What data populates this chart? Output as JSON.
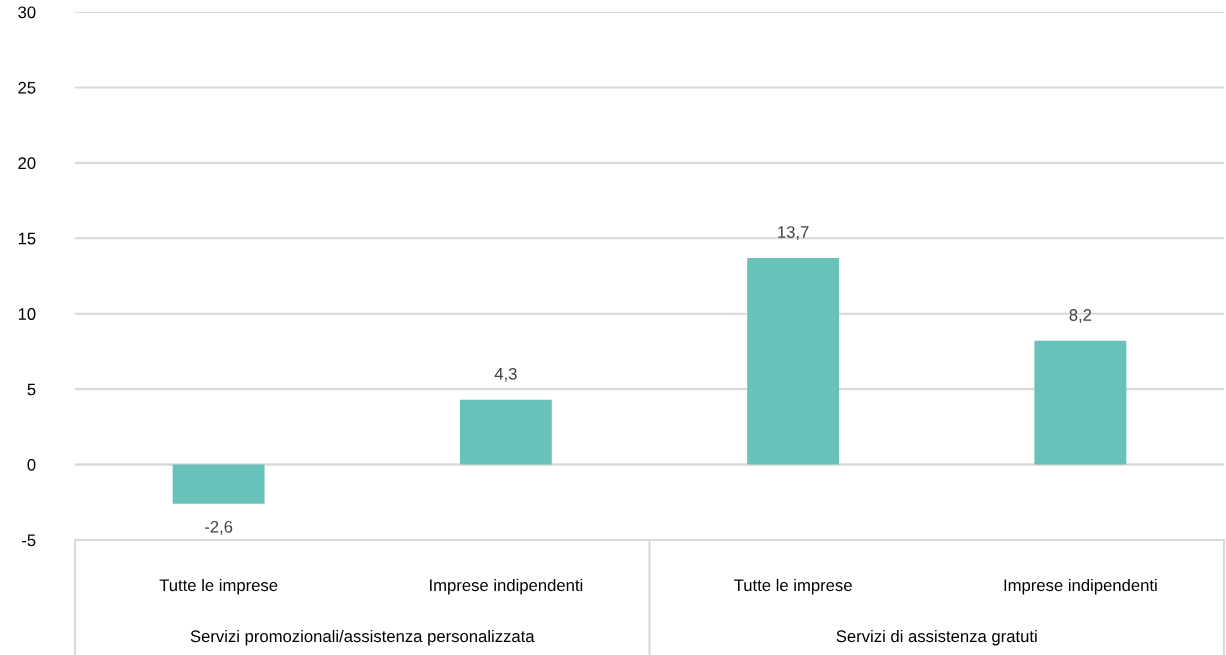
{
  "chart_data": {
    "type": "bar",
    "categories": [
      "Tutte le imprese",
      "Imprese indipendenti",
      "Tutte le imprese",
      "Imprese indipendenti"
    ],
    "values": [
      -2.6,
      4.3,
      13.7,
      8.2
    ],
    "color": "#69c2b9",
    "value_labels": [
      "-2,6",
      "4,3",
      "13,7",
      "8,2"
    ],
    "annotations": [
      "Servizi promozionali/assistenza personalizzata",
      "Servizi di assistenza gratuti"
    ],
    "ylim": [
      -5,
      30
    ],
    "yticks": [
      {
        "value": -5,
        "label": "-5"
      },
      0,
      5,
      10,
      15,
      20,
      25,
      30
    ],
    "grid": "y"
  }
}
